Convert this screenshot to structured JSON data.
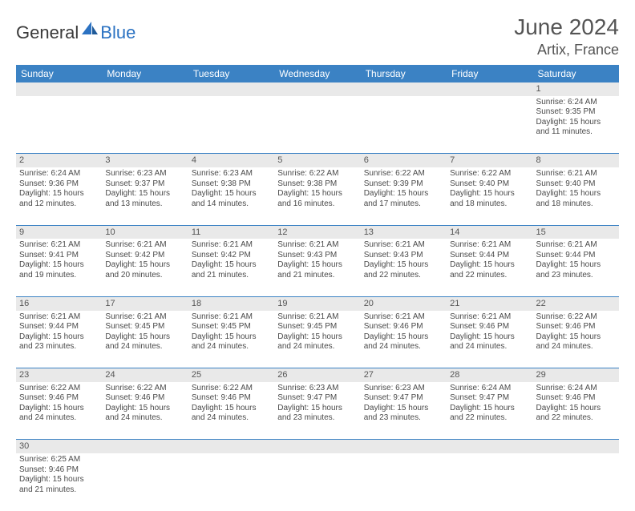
{
  "logo": {
    "general": "General",
    "blue": "Blue"
  },
  "title": "June 2024",
  "location": "Artix, France",
  "colors": {
    "header_bg": "#3b82c4",
    "header_text": "#ffffff",
    "daynum_bg": "#e9e9e9",
    "text": "#4a4a4a",
    "divider": "#3b82c4",
    "logo_blue": "#2b72c2",
    "logo_gray": "#3a3a3a"
  },
  "weekdays": [
    "Sunday",
    "Monday",
    "Tuesday",
    "Wednesday",
    "Thursday",
    "Friday",
    "Saturday"
  ],
  "weeks": [
    [
      null,
      null,
      null,
      null,
      null,
      null,
      {
        "n": "1",
        "sunrise": "6:24 AM",
        "sunset": "9:35 PM",
        "dl1": "15 hours",
        "dl2": "and 11 minutes."
      }
    ],
    [
      {
        "n": "2",
        "sunrise": "6:24 AM",
        "sunset": "9:36 PM",
        "dl1": "15 hours",
        "dl2": "and 12 minutes."
      },
      {
        "n": "3",
        "sunrise": "6:23 AM",
        "sunset": "9:37 PM",
        "dl1": "15 hours",
        "dl2": "and 13 minutes."
      },
      {
        "n": "4",
        "sunrise": "6:23 AM",
        "sunset": "9:38 PM",
        "dl1": "15 hours",
        "dl2": "and 14 minutes."
      },
      {
        "n": "5",
        "sunrise": "6:22 AM",
        "sunset": "9:38 PM",
        "dl1": "15 hours",
        "dl2": "and 16 minutes."
      },
      {
        "n": "6",
        "sunrise": "6:22 AM",
        "sunset": "9:39 PM",
        "dl1": "15 hours",
        "dl2": "and 17 minutes."
      },
      {
        "n": "7",
        "sunrise": "6:22 AM",
        "sunset": "9:40 PM",
        "dl1": "15 hours",
        "dl2": "and 18 minutes."
      },
      {
        "n": "8",
        "sunrise": "6:21 AM",
        "sunset": "9:40 PM",
        "dl1": "15 hours",
        "dl2": "and 18 minutes."
      }
    ],
    [
      {
        "n": "9",
        "sunrise": "6:21 AM",
        "sunset": "9:41 PM",
        "dl1": "15 hours",
        "dl2": "and 19 minutes."
      },
      {
        "n": "10",
        "sunrise": "6:21 AM",
        "sunset": "9:42 PM",
        "dl1": "15 hours",
        "dl2": "and 20 minutes."
      },
      {
        "n": "11",
        "sunrise": "6:21 AM",
        "sunset": "9:42 PM",
        "dl1": "15 hours",
        "dl2": "and 21 minutes."
      },
      {
        "n": "12",
        "sunrise": "6:21 AM",
        "sunset": "9:43 PM",
        "dl1": "15 hours",
        "dl2": "and 21 minutes."
      },
      {
        "n": "13",
        "sunrise": "6:21 AM",
        "sunset": "9:43 PM",
        "dl1": "15 hours",
        "dl2": "and 22 minutes."
      },
      {
        "n": "14",
        "sunrise": "6:21 AM",
        "sunset": "9:44 PM",
        "dl1": "15 hours",
        "dl2": "and 22 minutes."
      },
      {
        "n": "15",
        "sunrise": "6:21 AM",
        "sunset": "9:44 PM",
        "dl1": "15 hours",
        "dl2": "and 23 minutes."
      }
    ],
    [
      {
        "n": "16",
        "sunrise": "6:21 AM",
        "sunset": "9:44 PM",
        "dl1": "15 hours",
        "dl2": "and 23 minutes."
      },
      {
        "n": "17",
        "sunrise": "6:21 AM",
        "sunset": "9:45 PM",
        "dl1": "15 hours",
        "dl2": "and 24 minutes."
      },
      {
        "n": "18",
        "sunrise": "6:21 AM",
        "sunset": "9:45 PM",
        "dl1": "15 hours",
        "dl2": "and 24 minutes."
      },
      {
        "n": "19",
        "sunrise": "6:21 AM",
        "sunset": "9:45 PM",
        "dl1": "15 hours",
        "dl2": "and 24 minutes."
      },
      {
        "n": "20",
        "sunrise": "6:21 AM",
        "sunset": "9:46 PM",
        "dl1": "15 hours",
        "dl2": "and 24 minutes."
      },
      {
        "n": "21",
        "sunrise": "6:21 AM",
        "sunset": "9:46 PM",
        "dl1": "15 hours",
        "dl2": "and 24 minutes."
      },
      {
        "n": "22",
        "sunrise": "6:22 AM",
        "sunset": "9:46 PM",
        "dl1": "15 hours",
        "dl2": "and 24 minutes."
      }
    ],
    [
      {
        "n": "23",
        "sunrise": "6:22 AM",
        "sunset": "9:46 PM",
        "dl1": "15 hours",
        "dl2": "and 24 minutes."
      },
      {
        "n": "24",
        "sunrise": "6:22 AM",
        "sunset": "9:46 PM",
        "dl1": "15 hours",
        "dl2": "and 24 minutes."
      },
      {
        "n": "25",
        "sunrise": "6:22 AM",
        "sunset": "9:46 PM",
        "dl1": "15 hours",
        "dl2": "and 24 minutes."
      },
      {
        "n": "26",
        "sunrise": "6:23 AM",
        "sunset": "9:47 PM",
        "dl1": "15 hours",
        "dl2": "and 23 minutes."
      },
      {
        "n": "27",
        "sunrise": "6:23 AM",
        "sunset": "9:47 PM",
        "dl1": "15 hours",
        "dl2": "and 23 minutes."
      },
      {
        "n": "28",
        "sunrise": "6:24 AM",
        "sunset": "9:47 PM",
        "dl1": "15 hours",
        "dl2": "and 22 minutes."
      },
      {
        "n": "29",
        "sunrise": "6:24 AM",
        "sunset": "9:46 PM",
        "dl1": "15 hours",
        "dl2": "and 22 minutes."
      }
    ],
    [
      {
        "n": "30",
        "sunrise": "6:25 AM",
        "sunset": "9:46 PM",
        "dl1": "15 hours",
        "dl2": "and 21 minutes."
      },
      null,
      null,
      null,
      null,
      null,
      null
    ]
  ]
}
